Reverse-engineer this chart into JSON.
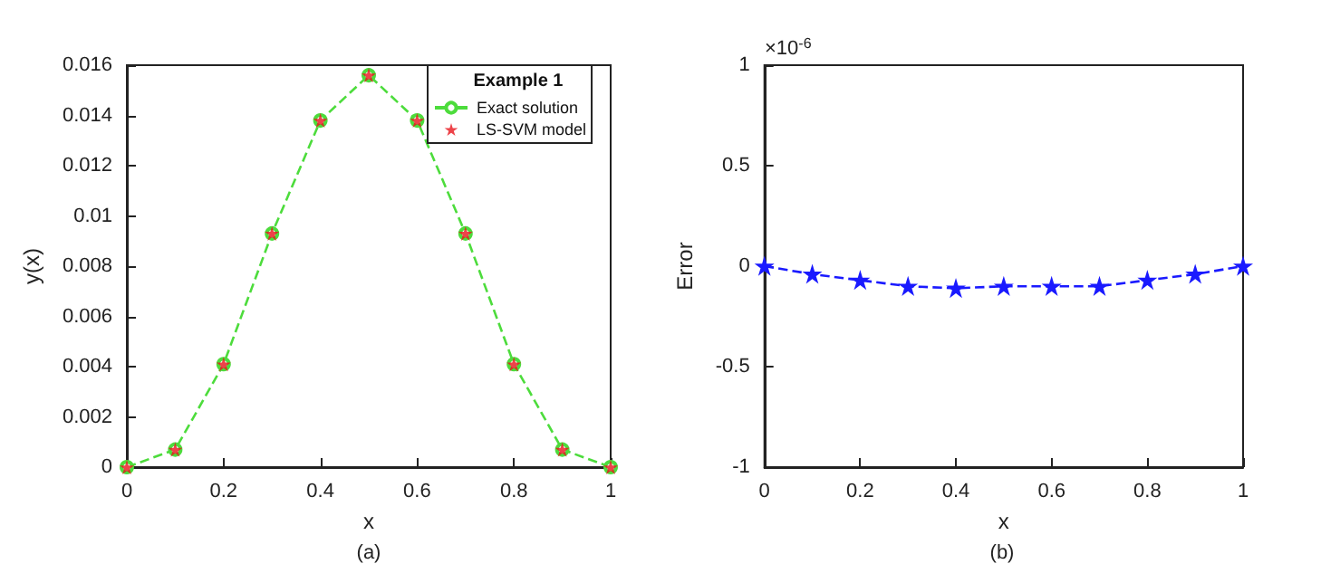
{
  "chart_data": [
    {
      "type": "line",
      "xlabel": "x",
      "ylabel": "y(x)",
      "legend_title": "Example 1",
      "legend": "top right",
      "grid": false,
      "annotations": [
        "(a)"
      ],
      "x": [
        0,
        0.1,
        0.2,
        0.3,
        0.4,
        0.5,
        0.6,
        0.7,
        0.8,
        0.9,
        1
      ],
      "xlim": [
        0,
        1
      ],
      "xticks": [
        0,
        0.2,
        0.4,
        0.6,
        0.8,
        1
      ],
      "ylim": [
        0,
        0.016
      ],
      "yticks": [
        0,
        0.002,
        0.004,
        0.006,
        0.008,
        0.01,
        0.012,
        0.014,
        0.016
      ],
      "series": [
        {
          "name": "Exact solution",
          "type": "line",
          "color": "#4ddc3c",
          "marker": "circle",
          "line_style": "dashed",
          "values": [
            0,
            0.0007,
            0.0041,
            0.0093,
            0.0138,
            0.0156,
            0.0138,
            0.0093,
            0.0041,
            0.0007,
            0
          ]
        },
        {
          "name": "LS-SVM model",
          "type": "scatter",
          "color": "#e8141c",
          "marker": "star",
          "values": [
            0,
            0.0007,
            0.0041,
            0.0093,
            0.0138,
            0.0156,
            0.0138,
            0.0093,
            0.0041,
            0.0007,
            0
          ]
        }
      ]
    },
    {
      "type": "line",
      "xlabel": "x",
      "ylabel": "Error",
      "legend": false,
      "grid": false,
      "annotations": [
        "(b)",
        "×10$^{-6}$"
      ],
      "x": [
        0,
        0.1,
        0.2,
        0.3,
        0.4,
        0.5,
        0.6,
        0.7,
        0.8,
        0.9,
        1
      ],
      "xlim": [
        0,
        1
      ],
      "xticks": [
        0,
        0.2,
        0.4,
        0.6,
        0.8,
        1
      ],
      "ylim": [
        -1,
        1
      ],
      "yticks": [
        -1,
        -0.5,
        0,
        0.5,
        1
      ],
      "series": [
        {
          "type": "line",
          "color": "#1a1aff",
          "marker": "star",
          "line_style": "dashed",
          "values": [
            0,
            -0.04,
            -0.07,
            -0.1,
            -0.11,
            -0.1,
            -0.1,
            -0.1,
            -0.07,
            -0.04,
            0
          ]
        }
      ]
    }
  ]
}
